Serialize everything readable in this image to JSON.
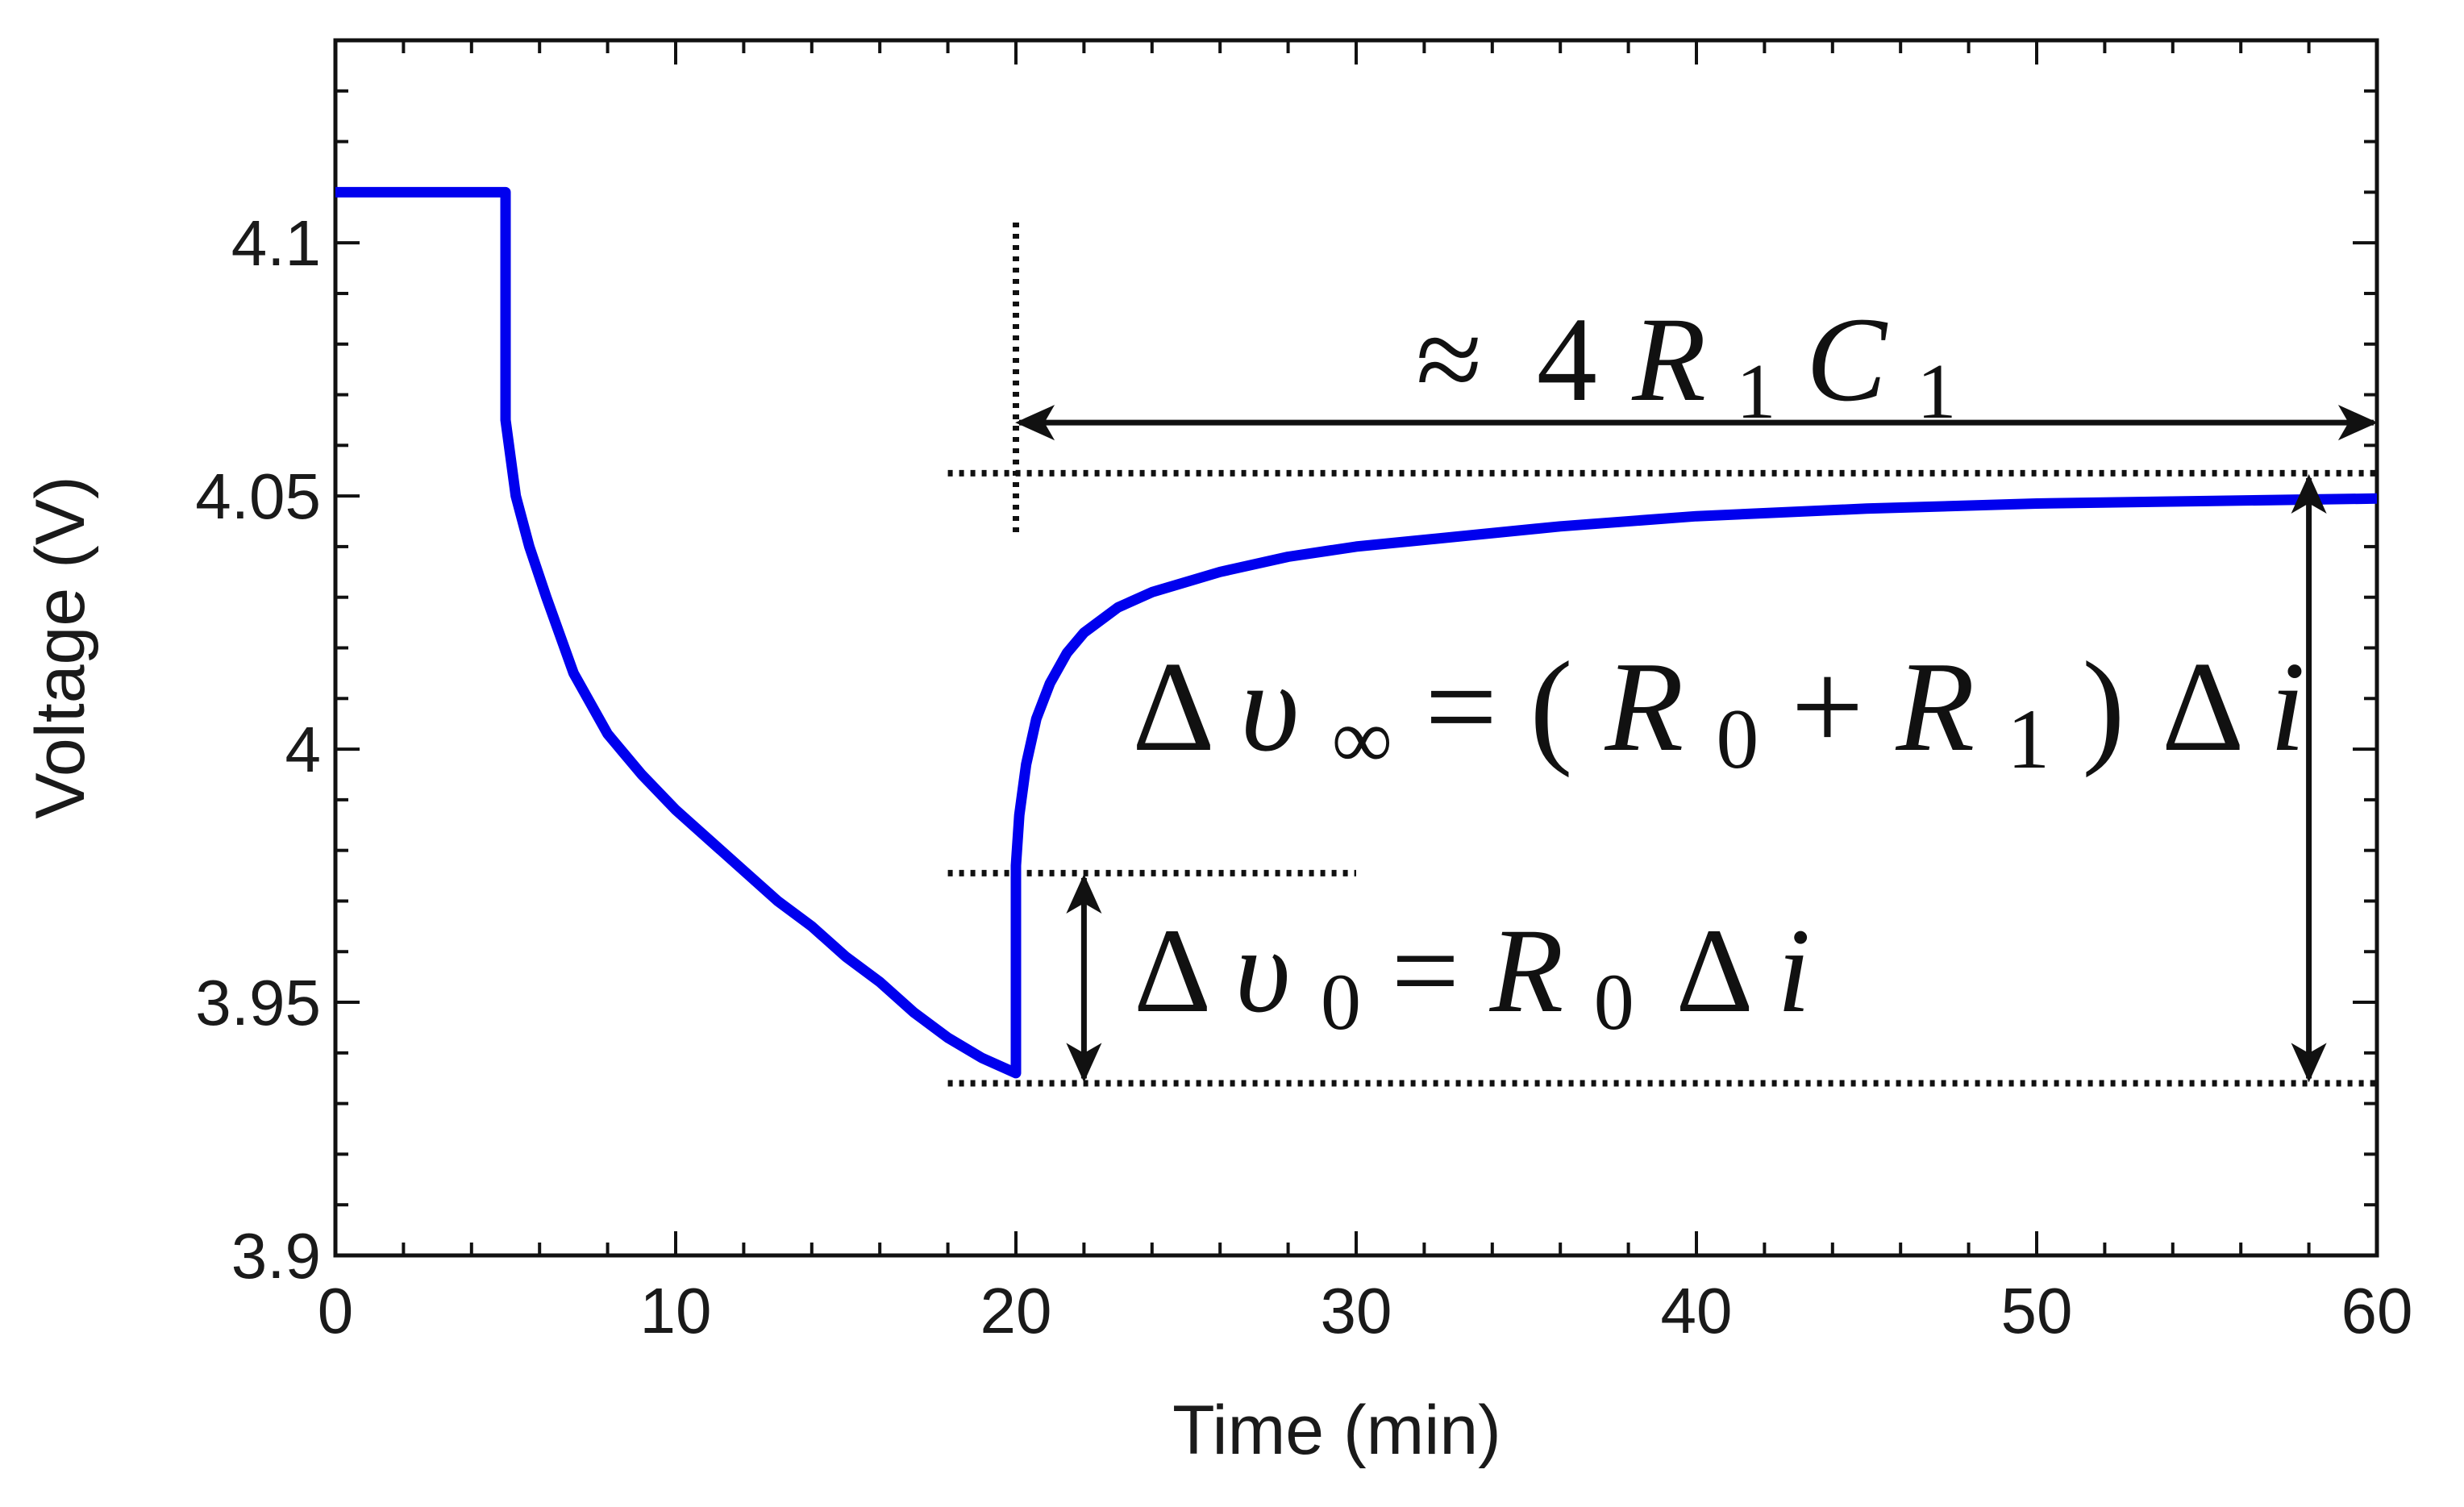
{
  "chart_data": {
    "type": "line",
    "xlabel": "Time (min)",
    "ylabel": "Voltage (V)",
    "xlim": [
      0,
      60
    ],
    "ylim": [
      3.9,
      4.14
    ],
    "x_ticks": [
      "0",
      "10",
      "20",
      "30",
      "40",
      "50",
      "60"
    ],
    "y_ticks": [
      "3.9",
      "3.95",
      "4",
      "4.05",
      "4.1"
    ],
    "grid": false,
    "series": [
      {
        "color": "#0000ee",
        "points": [
          [
            0,
            4.11
          ],
          [
            5,
            4.11
          ],
          [
            5,
            4.065
          ],
          [
            5.3,
            4.05
          ],
          [
            5.7,
            4.04
          ],
          [
            6.2,
            4.03
          ],
          [
            7,
            4.015
          ],
          [
            8,
            4.003
          ],
          [
            9,
            3.995
          ],
          [
            10,
            3.988
          ],
          [
            11,
            3.982
          ],
          [
            12,
            3.976
          ],
          [
            13,
            3.97
          ],
          [
            14,
            3.965
          ],
          [
            15,
            3.959
          ],
          [
            16,
            3.954
          ],
          [
            17,
            3.948
          ],
          [
            18,
            3.943
          ],
          [
            19,
            3.939
          ],
          [
            20,
            3.936
          ],
          [
            20,
            3.977
          ],
          [
            20.1,
            3.987
          ],
          [
            20.3,
            3.997
          ],
          [
            20.6,
            4.006
          ],
          [
            21,
            4.013
          ],
          [
            21.5,
            4.019
          ],
          [
            22,
            4.023
          ],
          [
            23,
            4.028
          ],
          [
            24,
            4.031
          ],
          [
            26,
            4.035
          ],
          [
            28,
            4.038
          ],
          [
            30,
            4.04
          ],
          [
            33,
            4.042
          ],
          [
            36,
            4.044
          ],
          [
            40,
            4.046
          ],
          [
            45,
            4.0475
          ],
          [
            50,
            4.0485
          ],
          [
            55,
            4.049
          ],
          [
            60,
            4.0495
          ]
        ]
      }
    ],
    "annotations": {
      "time_constant": {
        "approx": "≈",
        "coef": "4",
        "r": "R",
        "r_sub": "1",
        "c": "C",
        "c_sub": "1"
      },
      "delta_v_inf": {
        "delta": "Δ",
        "v": "υ",
        "sub": "∞",
        "eq": "=",
        "lparen": "(",
        "r0": "R",
        "r0_sub": "0",
        "plus": "+",
        "r1": "R",
        "r1_sub": "1",
        "rparen": ")",
        "delta2": "Δ",
        "i": "i"
      },
      "delta_v0": {
        "delta": "Δ",
        "v": "υ",
        "sub": "0",
        "eq": "=",
        "r0": "R",
        "r0_sub": "0",
        "delta2": "Δ",
        "i": "i"
      }
    },
    "reference_lines": {
      "v_high": 4.0545,
      "v_low": 3.934,
      "v_instant": 3.9755,
      "t_step": 20,
      "t_measure": 58,
      "t_instant_arrow": 22,
      "span_arrow_v": 4.0645,
      "vline_range": [
        4.042,
        4.104
      ],
      "vhigh_range": [
        18,
        60
      ],
      "vlow_range": [
        18,
        60
      ],
      "vinstant_range": [
        18,
        30
      ]
    }
  }
}
